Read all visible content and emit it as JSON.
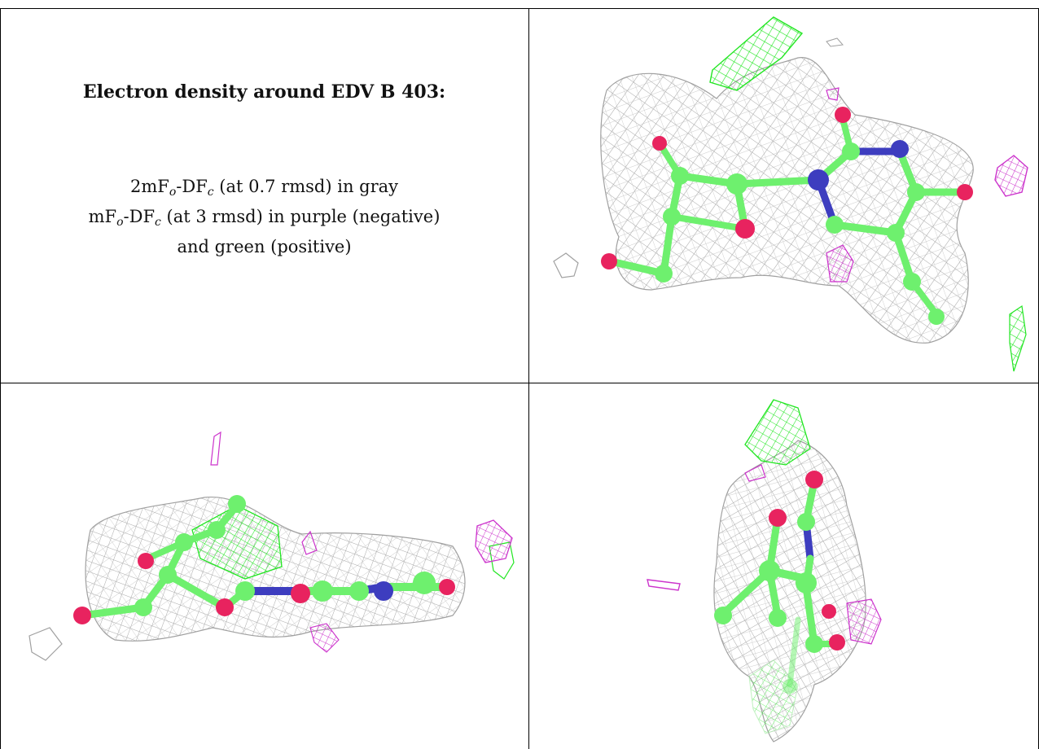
{
  "caption": {
    "title": "Electron density around EDV B 403:",
    "line1": {
      "a": "2mF",
      "s1": "o",
      "b": "-DF",
      "s2": "c",
      "rest": " (at 0.7 rmsd) in gray"
    },
    "line2": {
      "a": "mF",
      "s1": "o",
      "b": "-DF",
      "s2": "c",
      "rest": " (at 3 rmsd) in purple (negative)"
    },
    "line3": "and green (positive)"
  },
  "colors": {
    "mesh_gray": "#a8a8a8",
    "positive_green": "#22e622",
    "negative_purple": "#cc33cc",
    "carbon": "#6ef06e",
    "oxygen": "#e8235f",
    "nitrogen": "#3d3dbf"
  },
  "panels": [
    "view-top-right",
    "view-bottom-left",
    "view-bottom-right"
  ]
}
